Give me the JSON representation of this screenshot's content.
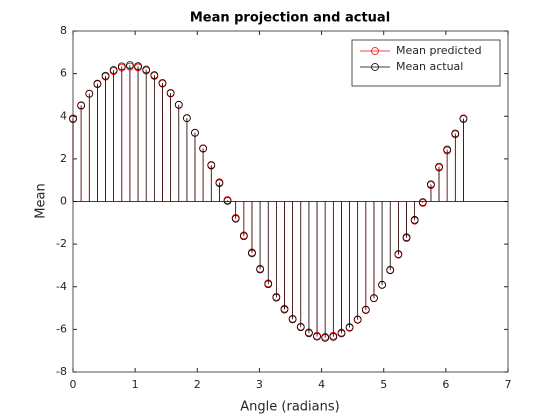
{
  "chart_data": {
    "type": "stem",
    "title": "Mean projection and actual",
    "x_label": "Angle (radians)",
    "y_label": "Mean",
    "xlim": [
      0,
      7
    ],
    "xticks": [
      0,
      1,
      2,
      3,
      4,
      5,
      6,
      7
    ],
    "ylim": [
      -8,
      8
    ],
    "yticks": [
      -8,
      -6,
      -4,
      -2,
      0,
      2,
      4,
      6,
      8
    ],
    "legend": "upper right",
    "x": [
      0,
      0.131,
      0.262,
      0.393,
      0.524,
      0.654,
      0.785,
      0.916,
      1.047,
      1.178,
      1.309,
      1.44,
      1.571,
      1.702,
      1.833,
      1.963,
      2.094,
      2.225,
      2.356,
      2.487,
      2.618,
      2.749,
      2.88,
      3.011,
      3.142,
      3.272,
      3.403,
      3.534,
      3.665,
      3.796,
      3.927,
      4.058,
      4.189,
      4.32,
      4.451,
      4.581,
      4.712,
      4.843,
      4.974,
      5.105,
      5.236,
      5.367,
      5.498,
      5.629,
      5.76,
      5.89,
      6.021,
      6.152,
      6.283
    ],
    "series": [
      {
        "name": "Mean predicted",
        "color": "#ff0000",
        "values": [
          3.9,
          4.52,
          5.05,
          5.5,
          5.86,
          6.12,
          6.28,
          6.33,
          6.29,
          6.14,
          5.89,
          5.53,
          5.07,
          4.53,
          3.91,
          3.23,
          2.5,
          1.72,
          0.9,
          0.07,
          -0.77,
          -1.59,
          -2.39,
          -3.15,
          -3.84,
          -4.47,
          -5.03,
          -5.5,
          -5.87,
          -6.14,
          -6.3,
          -6.35,
          -6.3,
          -6.15,
          -5.89,
          -5.53,
          -5.07,
          -4.53,
          -3.91,
          -3.23,
          -2.5,
          -1.72,
          -0.9,
          -0.07,
          0.77,
          1.59,
          2.39,
          3.15,
          3.9
        ]
      },
      {
        "name": "Mean actual",
        "color": "#000000",
        "values": [
          3.87,
          4.5,
          5.06,
          5.53,
          5.9,
          6.17,
          6.34,
          6.4,
          6.35,
          6.19,
          5.93,
          5.56,
          5.09,
          4.54,
          3.91,
          3.22,
          2.48,
          1.69,
          0.86,
          0.03,
          -0.81,
          -1.63,
          -2.43,
          -3.19,
          -3.88,
          -4.51,
          -5.07,
          -5.53,
          -5.9,
          -6.18,
          -6.34,
          -6.4,
          -6.35,
          -6.19,
          -5.92,
          -5.55,
          -5.09,
          -4.54,
          -3.91,
          -3.21,
          -2.47,
          -1.68,
          -0.86,
          -0.03,
          0.81,
          1.63,
          2.44,
          3.19,
          3.87
        ]
      }
    ]
  }
}
